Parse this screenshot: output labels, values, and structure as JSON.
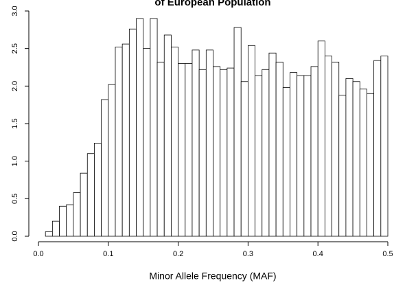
{
  "chart_data": {
    "type": "histogram",
    "title": "of European Population",
    "xlabel": "Minor Allele Frequency (MAF)",
    "bins": [
      0.01,
      0.02,
      0.03,
      0.04,
      0.05,
      0.06,
      0.07,
      0.08,
      0.09,
      0.1,
      0.11,
      0.12,
      0.13,
      0.14,
      0.15,
      0.16,
      0.17,
      0.18,
      0.19,
      0.2,
      0.21,
      0.22,
      0.23,
      0.24,
      0.25,
      0.26,
      0.27,
      0.28,
      0.29,
      0.3,
      0.31,
      0.32,
      0.33,
      0.34,
      0.35,
      0.36,
      0.37,
      0.38,
      0.39,
      0.4,
      0.41,
      0.42,
      0.43,
      0.44,
      0.45,
      0.46,
      0.47,
      0.48,
      0.49,
      0.5
    ],
    "values": [
      0.06,
      0.2,
      0.4,
      0.42,
      0.58,
      0.84,
      1.1,
      1.24,
      1.82,
      2.02,
      2.52,
      2.56,
      2.76,
      2.9,
      2.5,
      2.9,
      2.32,
      2.68,
      2.52,
      2.3,
      2.3,
      2.48,
      2.22,
      2.48,
      2.26,
      2.22,
      2.24,
      2.78,
      2.06,
      2.54,
      2.14,
      2.22,
      2.44,
      2.32,
      1.98,
      2.18,
      2.14,
      2.14,
      2.26,
      2.6,
      2.4,
      2.32,
      1.88,
      2.1,
      2.06,
      1.96,
      1.9,
      2.34,
      2.4
    ],
    "color": "#ffffff",
    "edgecolor": "#000000",
    "xlim": [
      0,
      0.5
    ],
    "xticks": [
      {
        "value": 0,
        "label": "0.0"
      },
      0.1,
      0.2,
      0.3,
      0.4,
      0.5
    ],
    "ylim": [
      0,
      3
    ],
    "yticks": [
      {
        "value": 0,
        "label": "0.0"
      },
      0.5,
      {
        "value": 1,
        "label": "1.0"
      },
      1.5,
      {
        "value": 2,
        "label": "2.0"
      },
      2.5,
      {
        "value": 3,
        "label": "3.0"
      }
    ]
  }
}
